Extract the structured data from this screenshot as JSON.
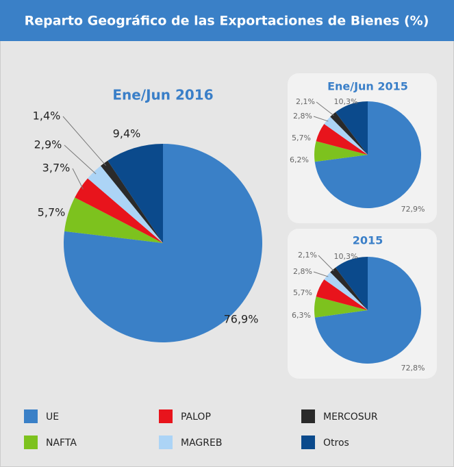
{
  "title": "Reparto Geográfico de las Exportaciones de Bienes (%)",
  "legend": {
    "categories": [
      "UE",
      "NAFTA",
      "PALOP",
      "MAGREB",
      "MERCOSUR",
      "Otros"
    ],
    "colors": [
      "#3a80c7",
      "#7dc21e",
      "#e8141c",
      "#acd4f6",
      "#2a2a2a",
      "#0b4a8c"
    ]
  },
  "chart_data": [
    {
      "type": "pie",
      "title": "Ene/Jun 2016",
      "values": [
        76.9,
        5.7,
        3.7,
        2.9,
        1.4,
        9.4
      ],
      "value_labels": [
        "76,9%",
        "5,7%",
        "3,7%",
        "2,9%",
        "1,4%",
        "9,4%"
      ]
    },
    {
      "type": "pie",
      "title": "Ene/Jun 2015",
      "values": [
        72.9,
        6.2,
        5.7,
        2.8,
        2.1,
        10.3
      ],
      "value_labels": [
        "72,9%",
        "6,2%",
        "5,7%",
        "2,8%",
        "2,1%",
        "10,3%"
      ]
    },
    {
      "type": "pie",
      "title": "2015",
      "values": [
        72.8,
        6.3,
        5.7,
        2.8,
        2.1,
        10.3
      ],
      "value_labels": [
        "72,8%",
        "6,3%",
        "5,7%",
        "2,8%",
        "2,1%",
        "10,3%"
      ]
    }
  ]
}
